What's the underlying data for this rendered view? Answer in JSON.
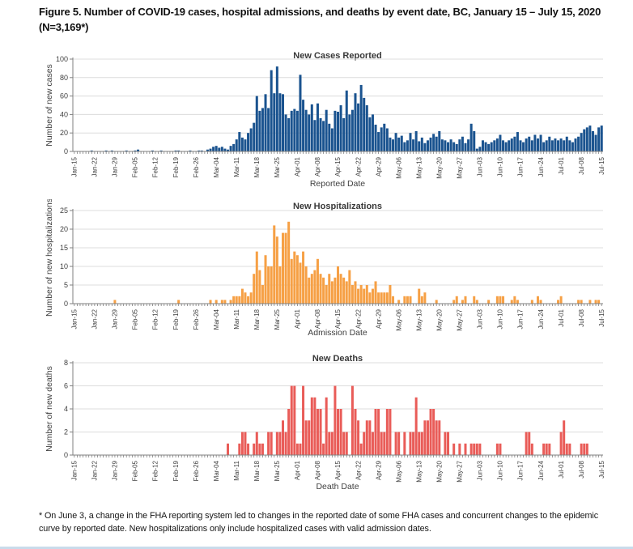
{
  "page": {
    "title_prefix": "Figure 5.",
    "title_rest": " Number of COVID-19 cases, hospital admissions, and deaths by event date, BC, January 15 – July 15, 2020",
    "title_line2": "(N=3,169*)",
    "footnote": "* On June 3, a change in the FHA reporting system led to changes in the reported date of some FHA cases and concurrent changes to the epidemic curve by reported date. New hospitalizations only include hospitalized cases with valid admission dates."
  },
  "colors": {
    "cases": "#1A538F",
    "hospitalizations": "#F6A045",
    "deaths": "#E95C58",
    "grid": "#DCDCDC",
    "axis": "#7F7F7F",
    "text": "#3F3F3F"
  },
  "chart_data": [
    {
      "type": "bar",
      "title": "New Cases Reported",
      "ylabel": "Number of new cases",
      "xlabel": "Reported Date",
      "ylim": [
        0,
        100
      ],
      "yticks": [
        0,
        20,
        40,
        60,
        80,
        100
      ],
      "grid": true,
      "color_key": "cases",
      "start_date": "Jan-15",
      "end_date": "Jul-15",
      "tick_interval_days": 7,
      "tick_labels": [
        "Jan-15",
        "Jan-22",
        "Jan-29",
        "Feb-05",
        "Feb-12",
        "Feb-19",
        "Feb-26",
        "Mar-04",
        "Mar-11",
        "Mar-18",
        "Mar-25",
        "Apr-01",
        "Apr-08",
        "Apr-15",
        "Apr-22",
        "Apr-29",
        "May-06",
        "May-13",
        "May-20",
        "May-27",
        "Jun-03",
        "Jun-10",
        "Jun-17",
        "Jun-24",
        "Jul-01",
        "Jul-08",
        "Jul-15"
      ],
      "values": [
        0,
        0,
        0,
        0,
        0,
        0,
        1,
        0,
        0,
        0,
        0,
        1,
        0,
        1,
        0,
        0,
        0,
        0,
        1,
        0,
        0,
        1,
        2,
        0,
        0,
        0,
        0,
        1,
        0,
        0,
        1,
        0,
        0,
        0,
        0,
        1,
        1,
        0,
        0,
        0,
        1,
        0,
        0,
        1,
        1,
        0,
        2,
        3,
        5,
        6,
        4,
        5,
        3,
        2,
        6,
        8,
        13,
        21,
        15,
        13,
        20,
        25,
        31,
        60,
        44,
        47,
        62,
        47,
        88,
        63,
        92,
        63,
        62,
        40,
        36,
        44,
        46,
        44,
        83,
        56,
        45,
        40,
        51,
        34,
        52,
        36,
        33,
        45,
        30,
        25,
        44,
        43,
        50,
        36,
        66,
        40,
        45,
        63,
        52,
        72,
        58,
        50,
        37,
        40,
        29,
        21,
        26,
        30,
        25,
        15,
        13,
        20,
        15,
        17,
        10,
        12,
        20,
        13,
        22,
        11,
        15,
        9,
        12,
        15,
        19,
        16,
        22,
        13,
        12,
        10,
        13,
        10,
        8,
        13,
        16,
        9,
        13,
        30,
        22,
        3,
        5,
        12,
        10,
        8,
        10,
        12,
        14,
        18,
        12,
        10,
        12,
        14,
        16,
        21,
        12,
        10,
        14,
        16,
        12,
        18,
        14,
        18,
        10,
        12,
        16,
        12,
        14,
        12,
        14,
        12,
        16,
        12,
        10,
        14,
        16,
        20,
        24,
        26,
        28,
        22,
        18,
        26,
        28
      ]
    },
    {
      "type": "bar",
      "title": "New Hospitalizations",
      "ylabel": "Number of new hospitalizations",
      "xlabel": "Admission Date",
      "ylim": [
        0,
        25
      ],
      "yticks": [
        0,
        5,
        10,
        15,
        20,
        25
      ],
      "grid": true,
      "color_key": "hospitalizations",
      "start_date": "Jan-15",
      "end_date": "Jul-15",
      "tick_interval_days": 7,
      "tick_labels": [
        "Jan-15",
        "Jan-22",
        "Jan-29",
        "Feb-05",
        "Feb-12",
        "Feb-19",
        "Feb-26",
        "Mar-04",
        "Mar-11",
        "Mar-18",
        "Mar-25",
        "Apr-01",
        "Apr-08",
        "Apr-15",
        "Apr-22",
        "Apr-29",
        "May-06",
        "May-13",
        "May-20",
        "May-27",
        "Jun-03",
        "Jun-10",
        "Jun-17",
        "Jun-24",
        "Jul-01",
        "Jul-08",
        "Jul-15"
      ],
      "values": [
        0,
        0,
        0,
        0,
        0,
        0,
        0,
        0,
        0,
        0,
        0,
        0,
        0,
        0,
        1,
        0,
        0,
        0,
        0,
        0,
        0,
        0,
        0,
        0,
        0,
        0,
        0,
        0,
        0,
        0,
        0,
        0,
        0,
        0,
        0,
        0,
        1,
        0,
        0,
        0,
        0,
        0,
        0,
        0,
        0,
        0,
        0,
        1,
        0,
        1,
        0,
        1,
        1,
        0,
        1,
        2,
        2,
        2,
        4,
        3,
        2,
        3,
        8,
        14,
        9,
        5,
        13,
        10,
        10,
        21,
        18,
        10,
        19,
        19,
        22,
        12,
        14,
        13,
        11,
        14,
        10,
        7,
        8,
        9,
        12,
        8,
        7,
        5,
        8,
        6,
        7,
        10,
        8,
        7,
        6,
        9,
        5,
        6,
        4,
        5,
        4,
        5,
        3,
        4,
        6,
        3,
        3,
        3,
        3,
        5,
        2,
        0,
        1,
        0,
        2,
        2,
        2,
        0,
        0,
        4,
        2,
        3,
        0,
        0,
        0,
        1,
        0,
        0,
        0,
        0,
        0,
        1,
        2,
        0,
        1,
        2,
        0,
        0,
        2,
        1,
        0,
        0,
        0,
        1,
        0,
        0,
        2,
        2,
        2,
        0,
        0,
        1,
        2,
        1,
        0,
        0,
        0,
        0,
        1,
        0,
        2,
        1,
        0,
        0,
        0,
        0,
        0,
        1,
        2,
        0,
        0,
        0,
        0,
        0,
        1,
        1,
        0,
        0,
        1,
        0,
        1,
        1,
        0
      ]
    },
    {
      "type": "bar",
      "title": "New Deaths",
      "ylabel": "Number of new deaths",
      "xlabel": "Death Date",
      "ylim": [
        0,
        8
      ],
      "yticks": [
        0,
        2,
        4,
        6,
        8
      ],
      "grid": true,
      "color_key": "deaths",
      "start_date": "Jan-15",
      "end_date": "Jul-15",
      "tick_interval_days": 7,
      "tick_labels": [
        "Jan-15",
        "Jan-22",
        "Jan-29",
        "Feb-05",
        "Feb-12",
        "Feb-19",
        "Feb-26",
        "Mar-04",
        "Mar-11",
        "Mar-18",
        "Mar-25",
        "Apr-01",
        "Apr-08",
        "Apr-15",
        "Apr-22",
        "Apr-29",
        "May-06",
        "May-13",
        "May-20",
        "May-27",
        "Jun-03",
        "Jun-10",
        "Jun-17",
        "Jun-24",
        "Jul-01",
        "Jul-08",
        "Jul-15"
      ],
      "values": [
        0,
        0,
        0,
        0,
        0,
        0,
        0,
        0,
        0,
        0,
        0,
        0,
        0,
        0,
        0,
        0,
        0,
        0,
        0,
        0,
        0,
        0,
        0,
        0,
        0,
        0,
        0,
        0,
        0,
        0,
        0,
        0,
        0,
        0,
        0,
        0,
        0,
        0,
        0,
        0,
        0,
        0,
        0,
        0,
        0,
        0,
        0,
        0,
        0,
        0,
        0,
        0,
        0,
        1,
        0,
        0,
        0,
        1,
        2,
        2,
        1,
        0,
        1,
        2,
        1,
        1,
        0,
        2,
        2,
        0,
        2,
        2,
        3,
        2,
        4,
        6,
        6,
        1,
        1,
        6,
        3,
        3,
        5,
        5,
        4,
        4,
        1,
        5,
        2,
        2,
        6,
        4,
        4,
        2,
        2,
        0,
        6,
        4,
        3,
        1,
        2,
        3,
        3,
        2,
        4,
        4,
        2,
        2,
        4,
        4,
        0,
        2,
        2,
        0,
        2,
        0,
        2,
        2,
        5,
        2,
        2,
        3,
        3,
        4,
        4,
        3,
        3,
        0,
        2,
        2,
        0,
        1,
        0,
        1,
        0,
        1,
        0,
        1,
        1,
        1,
        1,
        0,
        0,
        0,
        0,
        0,
        1,
        1,
        0,
        0,
        0,
        0,
        0,
        0,
        0,
        0,
        2,
        2,
        1,
        0,
        0,
        0,
        1,
        1,
        1,
        0,
        0,
        0,
        2,
        3,
        1,
        1,
        0,
        0,
        0,
        1,
        1,
        1,
        0,
        0,
        0,
        0,
        0
      ]
    }
  ]
}
